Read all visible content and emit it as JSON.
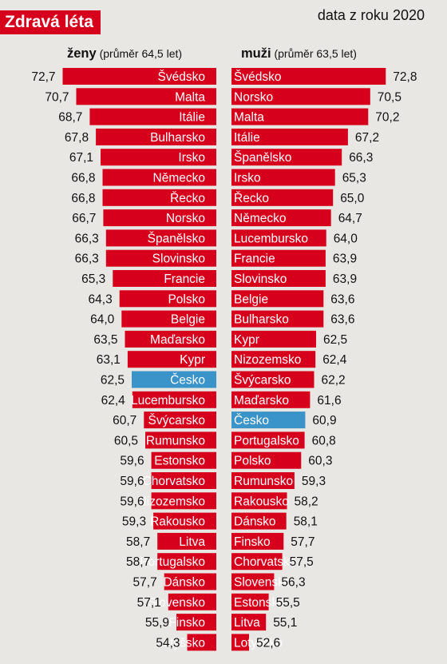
{
  "header": {
    "title": "Zdravá léta",
    "source": "data z roku 2020"
  },
  "colors": {
    "bar": "#d6001c",
    "highlight": "#3a93c9",
    "badge": "#d6001c",
    "background": "#e9e7e3"
  },
  "chart_data": [
    {
      "type": "bar",
      "orientation": "horizontal",
      "group_label": "ženy",
      "group_note": "(průměr 64,5 let)",
      "highlight": "Česko",
      "categories": [
        "Švédsko",
        "Malta",
        "Itálie",
        "Bulharsko",
        "Irsko",
        "Německo",
        "Řecko",
        "Norsko",
        "Španělsko",
        "Slovinsko",
        "Francie",
        "Polsko",
        "Belgie",
        "Maďarsko",
        "Kypr",
        "Česko",
        "Lucembursko",
        "Švýcarsko",
        "Rumunsko",
        "Estonsko",
        "Chorvatsko",
        "Nizozemsko",
        "Rakousko",
        "Litva",
        "Portugalsko",
        "Dánsko",
        "Slovensko",
        "Finsko",
        "Lotyšsko"
      ],
      "values": [
        72.7,
        70.7,
        68.7,
        67.8,
        67.1,
        66.8,
        66.8,
        66.7,
        66.3,
        66.3,
        65.3,
        64.3,
        64.0,
        63.5,
        63.1,
        62.5,
        62.4,
        60.7,
        60.5,
        59.6,
        59.6,
        59.6,
        59.3,
        58.7,
        58.7,
        57.7,
        57.1,
        55.9,
        54.3
      ],
      "labels": [
        "72,7",
        "70,7",
        "68,7",
        "67,8",
        "67,1",
        "66,8",
        "66,8",
        "66,7",
        "66,3",
        "66,3",
        "65,3",
        "64,3",
        "64,0",
        "63,5",
        "63,1",
        "62,5",
        "62,4",
        "60,7",
        "60,5",
        "59,6",
        "59,6",
        "59,6",
        "59,3",
        "58,7",
        "58,7",
        "57,7",
        "57,1",
        "55,9",
        "54,3"
      ]
    },
    {
      "type": "bar",
      "orientation": "horizontal",
      "group_label": "muži",
      "group_note": "(průměr 63,5 let)",
      "highlight": "Česko",
      "categories": [
        "Švédsko",
        "Norsko",
        "Malta",
        "Itálie",
        "Španělsko",
        "Irsko",
        "Řecko",
        "Německo",
        "Lucembursko",
        "Francie",
        "Slovinsko",
        "Belgie",
        "Bulharsko",
        "Kypr",
        "Nizozemsko",
        "Švýcarsko",
        "Maďarsko",
        "Česko",
        "Portugalsko",
        "Polsko",
        "Rumunsko",
        "Rakousko",
        "Dánsko",
        "Finsko",
        "Chorvatsko",
        "Slovensko",
        "Estonsko",
        "Litva",
        "Lotyšsko"
      ],
      "values": [
        72.8,
        70.5,
        70.2,
        67.2,
        66.3,
        65.3,
        65.0,
        64.7,
        64.0,
        63.9,
        63.9,
        63.6,
        63.6,
        62.5,
        62.4,
        62.2,
        61.6,
        60.9,
        60.8,
        60.3,
        59.3,
        58.2,
        58.1,
        57.7,
        57.5,
        56.3,
        55.5,
        55.1,
        52.6
      ],
      "labels": [
        "72,8",
        "70,5",
        "70,2",
        "67,2",
        "66,3",
        "65,3",
        "65,0",
        "64,7",
        "64,0",
        "63,9",
        "63,9",
        "63,6",
        "63,6",
        "62,5",
        "62,4",
        "62,2",
        "61,6",
        "60,9",
        "60,8",
        "60,3",
        "59,3",
        "58,2",
        "58,1",
        "57,7",
        "57,5",
        "56,3",
        "55,5",
        "55,1",
        "52,6"
      ]
    }
  ]
}
